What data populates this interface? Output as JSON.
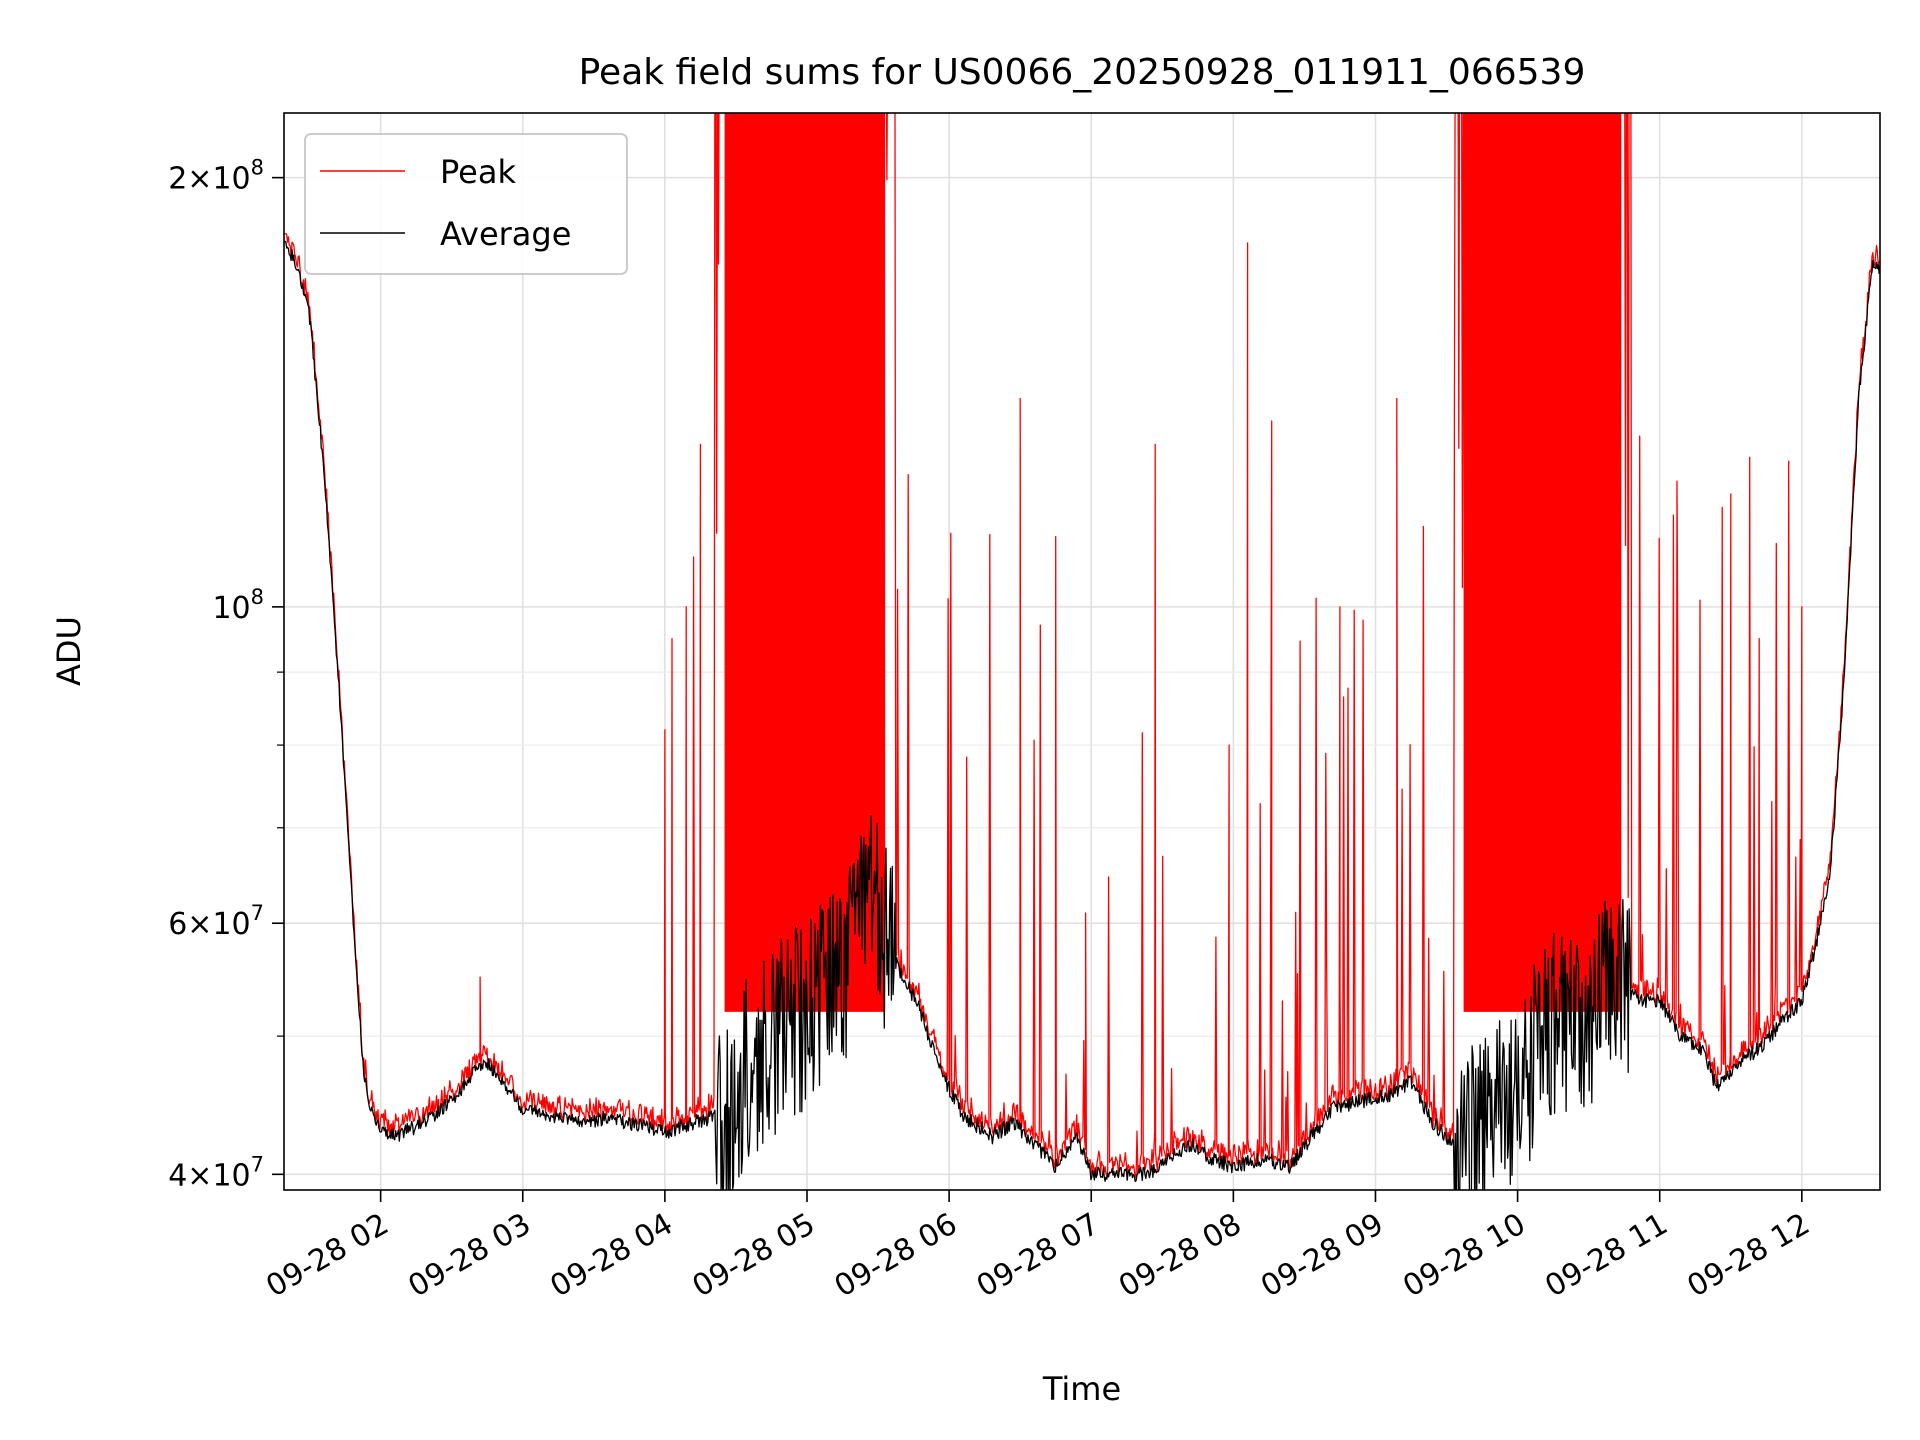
{
  "chart_data": {
    "type": "line",
    "title": "Peak field sums for US0066_20250928_011911_066539",
    "xlabel": "Time",
    "ylabel": "ADU",
    "yscale": "log",
    "xlim_hours": [
      1.32,
      12.55
    ],
    "ylim": [
      39000000,
      222000000
    ],
    "grid": true,
    "legend_position": "upper-left",
    "x_ticks": [
      {
        "hour": 2,
        "label": "09-28 02"
      },
      {
        "hour": 3,
        "label": "09-28 03"
      },
      {
        "hour": 4,
        "label": "09-28 04"
      },
      {
        "hour": 5,
        "label": "09-28 05"
      },
      {
        "hour": 6,
        "label": "09-28 06"
      },
      {
        "hour": 7,
        "label": "09-28 07"
      },
      {
        "hour": 8,
        "label": "09-28 08"
      },
      {
        "hour": 9,
        "label": "09-28 09"
      },
      {
        "hour": 10,
        "label": "09-28 10"
      },
      {
        "hour": 11,
        "label": "09-28 11"
      },
      {
        "hour": 12,
        "label": "09-28 12"
      }
    ],
    "y_ticks": [
      {
        "value": 40000000,
        "mant": "4",
        "exp": "7"
      },
      {
        "value": 60000000,
        "mant": "6",
        "exp": "7"
      },
      {
        "value": 100000000,
        "mant": "",
        "exp": "8"
      },
      {
        "value": 200000000,
        "mant": "2",
        "exp": "8"
      }
    ],
    "y_minor_ticks": [
      50000000,
      70000000,
      80000000,
      90000000
    ],
    "x_unit": "hours since 2025-09-28 00:00",
    "series": [
      {
        "name": "Peak",
        "color": "#ff0000",
        "burst_ranges": [
          [
            4.35,
            5.62
          ],
          [
            9.55,
            10.8
          ]
        ],
        "notable_spikes": [
          [
            2.7,
            55000000
          ],
          [
            4.0,
            82000000
          ],
          [
            4.05,
            95000000
          ],
          [
            4.15,
            100000000
          ],
          [
            4.25,
            130000000
          ],
          [
            6.5,
            140000000
          ],
          [
            6.75,
            112000000
          ],
          [
            6.96,
            61000000
          ],
          [
            7.45,
            130000000
          ],
          [
            7.97,
            80000000
          ],
          [
            8.1,
            180000000
          ],
          [
            8.27,
            135000000
          ],
          [
            8.75,
            100000000
          ],
          [
            9.15,
            140000000
          ],
          [
            11.5,
            120000000
          ],
          [
            11.7,
            95000000
          ],
          [
            12.0,
            100000000
          ]
        ]
      },
      {
        "name": "Average",
        "color": "#000000",
        "points": [
          [
            1.32,
            180000000
          ],
          [
            1.4,
            175000000
          ],
          [
            1.5,
            160000000
          ],
          [
            1.6,
            125000000
          ],
          [
            1.7,
            90000000
          ],
          [
            1.8,
            62000000
          ],
          [
            1.88,
            47000000
          ],
          [
            1.95,
            43500000
          ],
          [
            2.1,
            42500000
          ],
          [
            2.3,
            43500000
          ],
          [
            2.5,
            45000000
          ],
          [
            2.65,
            47000000
          ],
          [
            2.75,
            48000000
          ],
          [
            2.85,
            46500000
          ],
          [
            3.0,
            44500000
          ],
          [
            3.2,
            44000000
          ],
          [
            3.4,
            43500000
          ],
          [
            3.6,
            43800000
          ],
          [
            3.8,
            43300000
          ],
          [
            4.0,
            42800000
          ],
          [
            4.2,
            43500000
          ],
          [
            4.4,
            44000000
          ],
          [
            4.55,
            47000000
          ],
          [
            4.7,
            50000000
          ],
          [
            4.85,
            51500000
          ],
          [
            5.0,
            52000000
          ],
          [
            5.2,
            55000000
          ],
          [
            5.35,
            58000000
          ],
          [
            5.45,
            63000000
          ],
          [
            5.6,
            57000000
          ],
          [
            5.8,
            52000000
          ],
          [
            5.95,
            47000000
          ],
          [
            6.1,
            44000000
          ],
          [
            6.3,
            42500000
          ],
          [
            6.45,
            43500000
          ],
          [
            6.6,
            42000000
          ],
          [
            6.75,
            40500000
          ],
          [
            6.9,
            42500000
          ],
          [
            7.0,
            40000000
          ],
          [
            7.2,
            40000000
          ],
          [
            7.4,
            40000000
          ],
          [
            7.55,
            41000000
          ],
          [
            7.7,
            42000000
          ],
          [
            7.85,
            41000000
          ],
          [
            8.0,
            40500000
          ],
          [
            8.2,
            41000000
          ],
          [
            8.4,
            40500000
          ],
          [
            8.55,
            42500000
          ],
          [
            8.7,
            44500000
          ],
          [
            8.9,
            45000000
          ],
          [
            9.1,
            45500000
          ],
          [
            9.25,
            46500000
          ],
          [
            9.4,
            43500000
          ],
          [
            9.55,
            42000000
          ],
          [
            9.7,
            42500000
          ],
          [
            9.85,
            44000000
          ],
          [
            10.0,
            46000000
          ],
          [
            10.15,
            50000000
          ],
          [
            10.3,
            53000000
          ],
          [
            10.45,
            51000000
          ],
          [
            10.6,
            53000000
          ],
          [
            10.7,
            57000000
          ],
          [
            10.85,
            53000000
          ],
          [
            11.0,
            53000000
          ],
          [
            11.15,
            50000000
          ],
          [
            11.3,
            49000000
          ],
          [
            11.4,
            46000000
          ],
          [
            11.55,
            48000000
          ],
          [
            11.7,
            49000000
          ],
          [
            11.85,
            51000000
          ],
          [
            12.0,
            53000000
          ],
          [
            12.1,
            58000000
          ],
          [
            12.2,
            65000000
          ],
          [
            12.3,
            90000000
          ],
          [
            12.4,
            140000000
          ],
          [
            12.5,
            175000000
          ],
          [
            12.55,
            172000000
          ]
        ]
      }
    ]
  }
}
